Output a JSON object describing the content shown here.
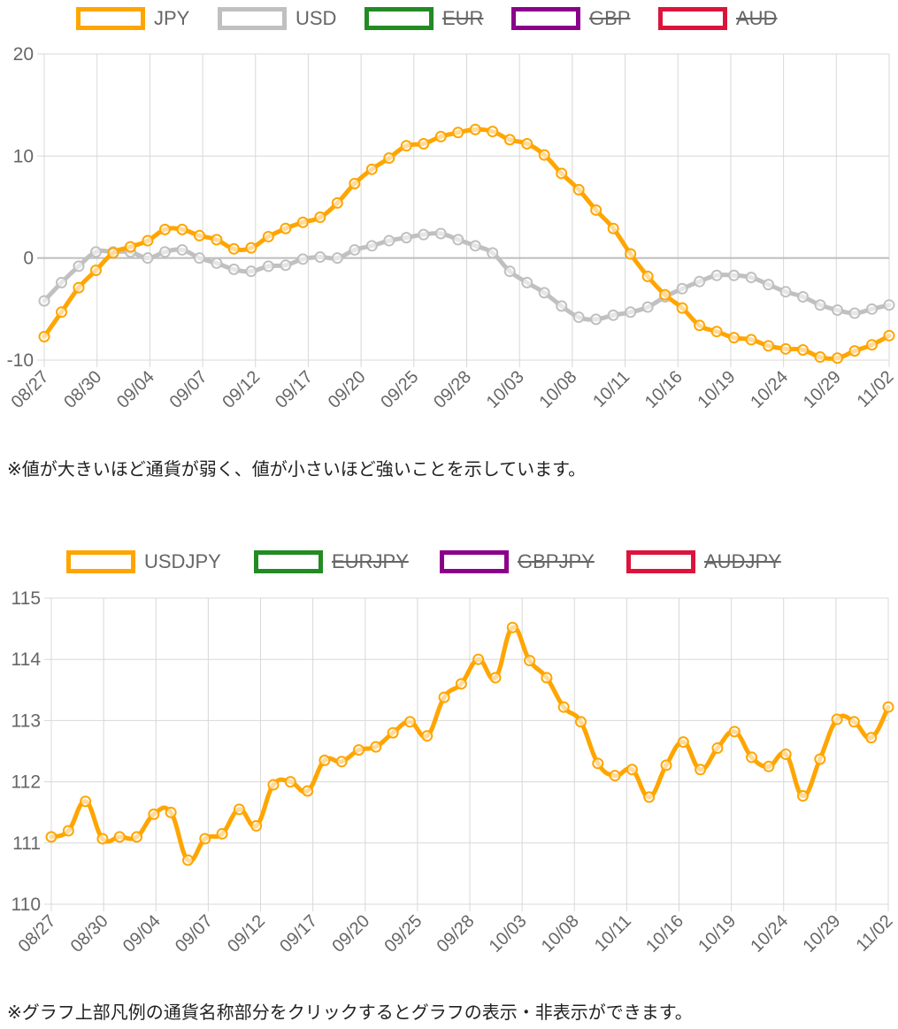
{
  "chart1": {
    "legend": [
      {
        "label": "JPY",
        "color": "#FFA500",
        "hidden": false
      },
      {
        "label": "USD",
        "color": "#C0C0C0",
        "hidden": false
      },
      {
        "label": "EUR",
        "color": "#228B22",
        "hidden": true
      },
      {
        "label": "GBP",
        "color": "#8B008B",
        "hidden": true
      },
      {
        "label": "AUD",
        "color": "#DC143C",
        "hidden": true
      }
    ],
    "note": "※値が大きいほど通貨が弱く、値が小さいほど強いことを示しています。"
  },
  "chart2": {
    "legend": [
      {
        "label": "USDJPY",
        "color": "#FFA500",
        "hidden": false
      },
      {
        "label": "EURJPY",
        "color": "#228B22",
        "hidden": true
      },
      {
        "label": "GBPJPY",
        "color": "#8B008B",
        "hidden": true
      },
      {
        "label": "AUDJPY",
        "color": "#DC143C",
        "hidden": true
      }
    ],
    "note": "※グラフ上部凡例の通貨名称部分をクリックするとグラフの表示・非表示ができます。"
  },
  "chart_data": [
    {
      "type": "line",
      "xtick_labels": [
        "08/27",
        "08/30",
        "09/04",
        "09/07",
        "09/12",
        "09/17",
        "09/20",
        "09/25",
        "09/28",
        "10/03",
        "10/08",
        "10/11",
        "10/16",
        "10/19",
        "10/24",
        "10/29",
        "11/02"
      ],
      "ylim": [
        -10,
        20
      ],
      "yticks": [
        -10,
        0,
        10,
        20
      ],
      "grid": true,
      "legend_position": "top",
      "series": [
        {
          "name": "JPY",
          "color": "#FFA500",
          "values": [
            -7.7,
            -5.3,
            -2.9,
            -1.2,
            0.5,
            1.1,
            1.7,
            2.8,
            2.8,
            2.2,
            1.8,
            0.9,
            1.0,
            2.1,
            2.9,
            3.5,
            4.0,
            5.4,
            7.3,
            8.7,
            9.8,
            11.0,
            11.2,
            11.9,
            12.3,
            12.6,
            12.4,
            11.6,
            11.2,
            10.1,
            8.3,
            6.7,
            4.7,
            2.9,
            0.4,
            -1.8,
            -3.6,
            -4.9,
            -6.6,
            -7.2,
            -7.8,
            -8.0,
            -8.6,
            -8.9,
            -9.0,
            -9.7,
            -9.8,
            -9.1,
            -8.5,
            -7.6
          ]
        },
        {
          "name": "USD",
          "color": "#C0C0C0",
          "values": [
            -4.2,
            -2.4,
            -0.8,
            0.6,
            0.6,
            0.6,
            0.0,
            0.6,
            0.8,
            0.0,
            -0.5,
            -1.1,
            -1.3,
            -0.8,
            -0.7,
            -0.1,
            0.1,
            0.0,
            0.8,
            1.2,
            1.7,
            2.0,
            2.3,
            2.4,
            1.8,
            1.2,
            0.5,
            -1.3,
            -2.4,
            -3.4,
            -4.7,
            -5.8,
            -6.0,
            -5.6,
            -5.3,
            -4.8,
            -3.8,
            -3.0,
            -2.3,
            -1.7,
            -1.7,
            -1.9,
            -2.6,
            -3.3,
            -3.8,
            -4.6,
            -5.1,
            -5.4,
            -5.0,
            -4.6
          ]
        },
        {
          "name": "EUR",
          "color": "#228B22",
          "hidden": true,
          "values": []
        },
        {
          "name": "GBP",
          "color": "#8B008B",
          "hidden": true,
          "values": []
        },
        {
          "name": "AUD",
          "color": "#DC143C",
          "hidden": true,
          "values": []
        }
      ]
    },
    {
      "type": "line",
      "xtick_labels": [
        "08/27",
        "08/30",
        "09/04",
        "09/07",
        "09/12",
        "09/17",
        "09/20",
        "09/25",
        "09/28",
        "10/03",
        "10/08",
        "10/11",
        "10/16",
        "10/19",
        "10/24",
        "10/29",
        "11/02"
      ],
      "ylim": [
        110,
        115
      ],
      "yticks": [
        110,
        111,
        112,
        113,
        114,
        115
      ],
      "grid": true,
      "legend_position": "top",
      "series": [
        {
          "name": "USDJPY",
          "color": "#FFA500",
          "values": [
            111.1,
            111.2,
            111.68,
            111.07,
            111.1,
            111.1,
            111.47,
            111.5,
            110.72,
            111.07,
            111.15,
            111.55,
            111.28,
            111.95,
            112.0,
            111.85,
            112.35,
            112.33,
            112.52,
            112.57,
            112.8,
            112.98,
            112.75,
            113.38,
            113.6,
            114.0,
            113.7,
            114.52,
            113.98,
            113.7,
            113.22,
            112.98,
            112.3,
            112.1,
            112.2,
            111.75,
            112.27,
            112.65,
            112.2,
            112.55,
            112.82,
            112.4,
            112.25,
            112.45,
            111.77,
            112.37,
            113.02,
            112.98,
            112.72,
            113.22
          ]
        },
        {
          "name": "EURJPY",
          "color": "#228B22",
          "hidden": true,
          "values": []
        },
        {
          "name": "GBPJPY",
          "color": "#8B008B",
          "hidden": true,
          "values": []
        },
        {
          "name": "AUDJPY",
          "color": "#DC143C",
          "hidden": true,
          "values": []
        }
      ]
    }
  ]
}
